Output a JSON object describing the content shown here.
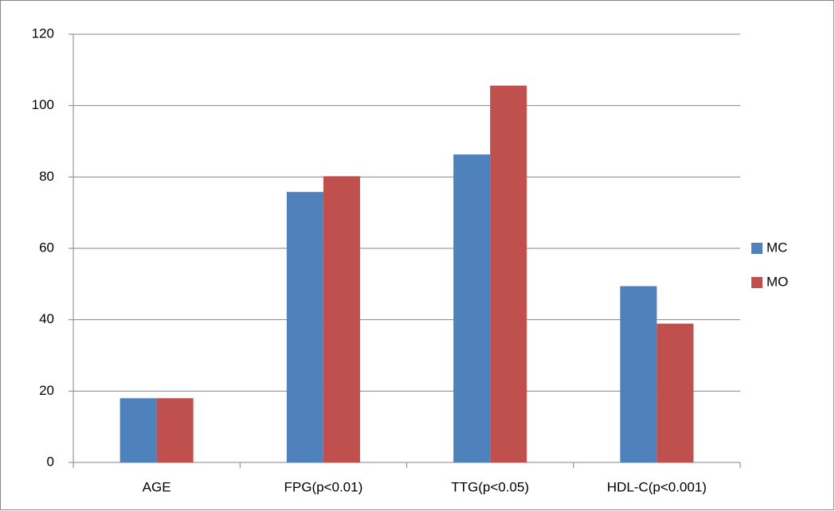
{
  "chart_data": {
    "type": "bar",
    "categories": [
      "AGE",
      "FPG(p<0.01)",
      "TTG(p<0.05)",
      "HDL-C(p<0.001)"
    ],
    "series": [
      {
        "name": "MC",
        "color": "#4f81bd",
        "values": [
          18,
          75.8,
          86.3,
          49.4
        ]
      },
      {
        "name": "MO",
        "color": "#c0504d",
        "values": [
          18,
          80.2,
          105.6,
          38.9
        ]
      }
    ],
    "ylim": [
      0,
      120
    ],
    "yticks": [
      0,
      20,
      40,
      60,
      80,
      100,
      120
    ],
    "grid": true,
    "legend": "right"
  }
}
